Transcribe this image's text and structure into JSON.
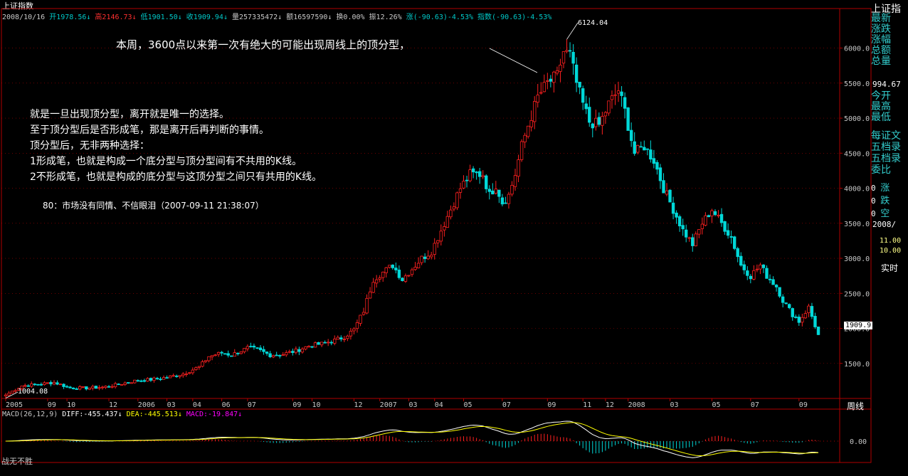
{
  "header": {
    "title": "上证指数",
    "date": "2008/10/16",
    "stats": [
      {
        "label": "开",
        "value": "1978.56",
        "arrow": "↓",
        "color": "#00c8c8"
      },
      {
        "label": "高",
        "value": "2146.73",
        "arrow": "↓",
        "color": "#ff3030"
      },
      {
        "label": "低",
        "value": "1901.50",
        "arrow": "↓",
        "color": "#00c8c8"
      },
      {
        "label": "收",
        "value": "1909.94",
        "arrow": "↓",
        "color": "#00c8c8"
      },
      {
        "label": "量",
        "value": "257335472",
        "arrow": "↓",
        "color": "#c8c8c8"
      },
      {
        "label": "额",
        "value": "16597590",
        "arrow": "↓",
        "color": "#c8c8c8"
      },
      {
        "label": "换",
        "value": "0.00%",
        "arrow": "",
        "color": "#c8c8c8"
      },
      {
        "label": "振",
        "value": "12.26%",
        "arrow": "",
        "color": "#c8c8c8"
      },
      {
        "label": "涨",
        "value": "(-90.63)-4.53%",
        "arrow": "",
        "color": "#00c8c8"
      },
      {
        "label": "指数",
        "value": "(-90.63)-4.53%",
        "arrow": "",
        "color": "#00c8c8"
      }
    ]
  },
  "annotations": {
    "top": "本周，3600点以来第一次有绝大的可能出现周线上的顶分型，",
    "body": [
      "就是一旦出现顶分型，离开就是唯一的选择。",
      "至于顶分型后是否形成笔，那是离开后再判断的事情。",
      "顶分型后，无非两种选择：",
      "1形成笔，也就是构成一个底分型与顶分型间有不共用的K线。",
      "2不形成笔，也就是构成的底分型与这顶分型之间只有共用的K线。"
    ],
    "citation": "80：市场没有同情、不信眼泪（2007-09-11 21:38:07）",
    "high_label": "6124.04",
    "low_label": "1004.08",
    "last_price": "1909.9"
  },
  "right_panel": {
    "title": "上证指",
    "items": [
      "最新",
      "涨跌",
      "涨幅",
      "总额",
      "总量"
    ],
    "value": "994.67",
    "items2": [
      "今开",
      "最高",
      "最低"
    ],
    "items3": [
      "每证文",
      "五档录",
      "五档录",
      "委比"
    ],
    "counts": [
      [
        "0",
        "涨"
      ],
      [
        "0",
        "跌"
      ],
      [
        "0",
        "空"
      ]
    ],
    "date": "2008/",
    "times": [
      "11.00",
      "10.00"
    ],
    "mode": "实时"
  },
  "macd": {
    "label": "MACD(26,12,9)",
    "diff_label": "DIFF:",
    "diff": "-455.437",
    "diff_arrow": "↓",
    "dea_label": "DEA:",
    "dea": "-445.513",
    "dea_arrow": "↓",
    "macd_label": "MACD:",
    "macd": "-19.847",
    "macd_arrow": "↓",
    "zero_tick": "0.00"
  },
  "footer": {
    "left": "战无不胜",
    "period": "周线"
  },
  "chart_data": {
    "type": "candlestick",
    "title": "上证指数",
    "period": "weekly",
    "ylim": [
      1000,
      6300
    ],
    "yticks": [
      1500,
      2000,
      2500,
      3000,
      3500,
      4000,
      4500,
      5000,
      5500,
      6000
    ],
    "ytick_labels": [
      "1500.0",
      "2000.0",
      "2500.0",
      "3000.0",
      "3500.0",
      "4000.0",
      "4500.0",
      "5000.0",
      "5500.0",
      "6000.0"
    ],
    "xticks": [
      {
        "i": 0,
        "label": "2005"
      },
      {
        "i": 13,
        "label": "09"
      },
      {
        "i": 19,
        "label": "10"
      },
      {
        "i": 32,
        "label": "12"
      },
      {
        "i": 41,
        "label": "2006"
      },
      {
        "i": 50,
        "label": "03"
      },
      {
        "i": 58,
        "label": "04"
      },
      {
        "i": 67,
        "label": "06"
      },
      {
        "i": 75,
        "label": "07"
      },
      {
        "i": 89,
        "label": "09"
      },
      {
        "i": 95,
        "label": "10"
      },
      {
        "i": 108,
        "label": "12"
      },
      {
        "i": 116,
        "label": "2007"
      },
      {
        "i": 125,
        "label": "03"
      },
      {
        "i": 133,
        "label": "04"
      },
      {
        "i": 142,
        "label": "05"
      },
      {
        "i": 154,
        "label": "07"
      },
      {
        "i": 168,
        "label": "09"
      },
      {
        "i": 179,
        "label": "11"
      },
      {
        "i": 186,
        "label": "12"
      },
      {
        "i": 193,
        "label": "2008"
      },
      {
        "i": 206,
        "label": "03"
      },
      {
        "i": 219,
        "label": "05"
      },
      {
        "i": 231,
        "label": "07"
      },
      {
        "i": 246,
        "label": "09"
      }
    ],
    "anchors_close": [
      [
        0,
        1050
      ],
      [
        5,
        1180
      ],
      [
        10,
        1200
      ],
      [
        15,
        1230
      ],
      [
        20,
        1150
      ],
      [
        25,
        1150
      ],
      [
        30,
        1160
      ],
      [
        35,
        1200
      ],
      [
        40,
        1250
      ],
      [
        45,
        1270
      ],
      [
        50,
        1300
      ],
      [
        55,
        1350
      ],
      [
        60,
        1450
      ],
      [
        63,
        1600
      ],
      [
        67,
        1650
      ],
      [
        70,
        1620
      ],
      [
        75,
        1720
      ],
      [
        78,
        1700
      ],
      [
        82,
        1620
      ],
      [
        86,
        1630
      ],
      [
        90,
        1680
      ],
      [
        94,
        1750
      ],
      [
        98,
        1780
      ],
      [
        102,
        1830
      ],
      [
        105,
        1880
      ],
      [
        108,
        1980
      ],
      [
        111,
        2250
      ],
      [
        114,
        2700
      ],
      [
        117,
        2800
      ],
      [
        120,
        2900
      ],
      [
        123,
        2700
      ],
      [
        126,
        2850
      ],
      [
        129,
        3000
      ],
      [
        132,
        3100
      ],
      [
        135,
        3400
      ],
      [
        138,
        3700
      ],
      [
        141,
        4000
      ],
      [
        144,
        4200
      ],
      [
        148,
        4200
      ],
      [
        150,
        3900
      ],
      [
        152,
        4050
      ],
      [
        154,
        3800
      ],
      [
        156,
        3900
      ],
      [
        158,
        4200
      ],
      [
        160,
        4600
      ],
      [
        162,
        4900
      ],
      [
        165,
        5300
      ],
      [
        168,
        5500
      ],
      [
        171,
        5600
      ],
      [
        173,
        5950
      ],
      [
        175,
        5900
      ],
      [
        177,
        5500
      ],
      [
        179,
        5200
      ],
      [
        181,
        4950
      ],
      [
        184,
        4900
      ],
      [
        187,
        5200
      ],
      [
        190,
        5400
      ],
      [
        192,
        5100
      ],
      [
        195,
        4500
      ],
      [
        198,
        4600
      ],
      [
        201,
        4400
      ],
      [
        204,
        4000
      ],
      [
        207,
        3700
      ],
      [
        210,
        3400
      ],
      [
        213,
        3200
      ],
      [
        216,
        3500
      ],
      [
        219,
        3700
      ],
      [
        222,
        3500
      ],
      [
        225,
        3300
      ],
      [
        228,
        2900
      ],
      [
        231,
        2750
      ],
      [
        234,
        2900
      ],
      [
        236,
        2750
      ],
      [
        239,
        2600
      ],
      [
        241,
        2400
      ],
      [
        244,
        2200
      ],
      [
        246,
        2100
      ],
      [
        249,
        2300
      ],
      [
        252,
        1910
      ]
    ],
    "high": 6124.04,
    "low": 1004.08,
    "last_close": 1909.94,
    "macd": {
      "diff": -455.437,
      "dea": -445.513,
      "macd": -19.847
    }
  },
  "colors": {
    "up": "#ff2020",
    "down": "#00d8d8",
    "axis": "#b00000",
    "diff": "#ffffff",
    "dea": "#ffff00",
    "macd": "#ff00ff",
    "text": "#c8c8c8"
  }
}
